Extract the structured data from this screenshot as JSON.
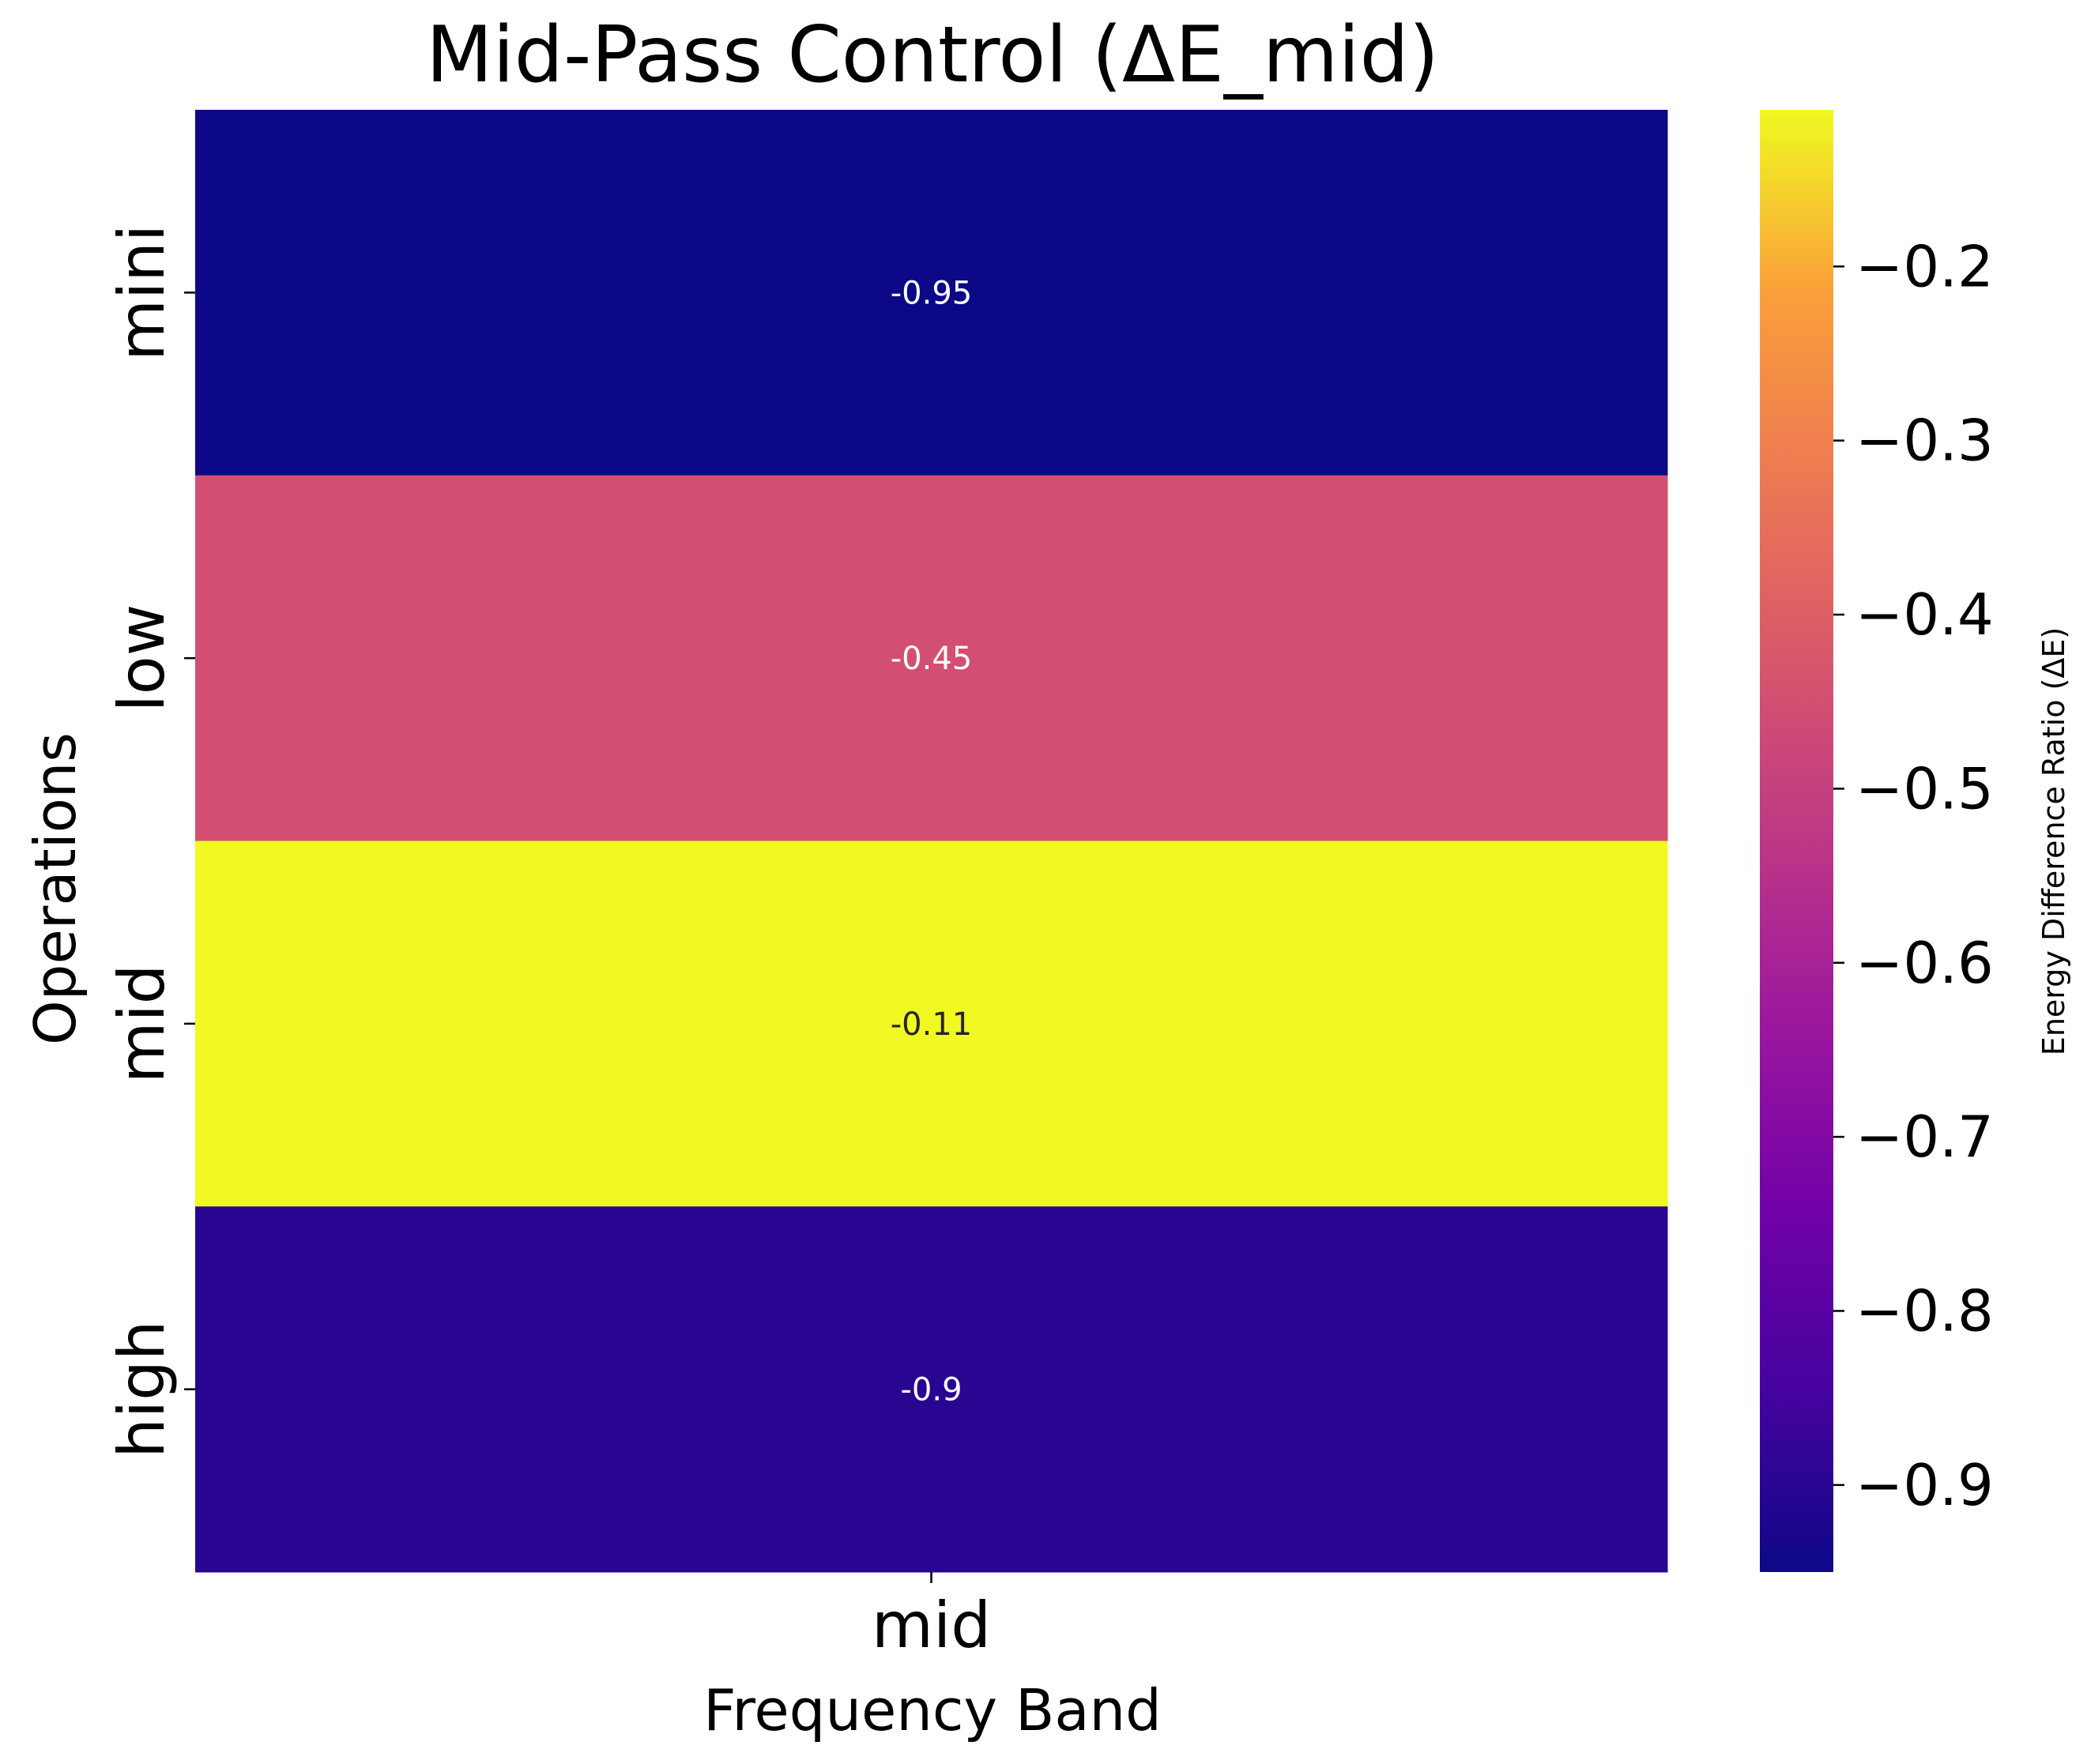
{
  "chart_data": {
    "type": "heatmap",
    "title": "Mid-Pass Control (ΔE_mid)",
    "xlabel": "Frequency Band",
    "ylabel": "Operations",
    "x_categories": [
      "mid"
    ],
    "y_categories": [
      "mini",
      "low",
      "mid",
      "high"
    ],
    "values": [
      [
        -0.95
      ],
      [
        -0.45
      ],
      [
        -0.11
      ],
      [
        -0.9
      ]
    ],
    "cell_labels": [
      [
        "-0.95"
      ],
      [
        "-0.45"
      ],
      [
        "-0.11"
      ],
      [
        "-0.9"
      ]
    ],
    "colormap": "plasma",
    "vmin": -0.95,
    "vmax": -0.11,
    "colorbar": {
      "label": "Energy Difference Ratio (ΔE)",
      "ticks": [
        -0.9,
        -0.8,
        -0.7,
        -0.6,
        -0.5,
        -0.4,
        -0.3,
        -0.2
      ],
      "tick_labels": [
        "−0.9",
        "−0.8",
        "−0.7",
        "−0.6",
        "−0.5",
        "−0.4",
        "−0.3",
        "−0.2"
      ]
    },
    "grid": false,
    "legend": "none"
  }
}
